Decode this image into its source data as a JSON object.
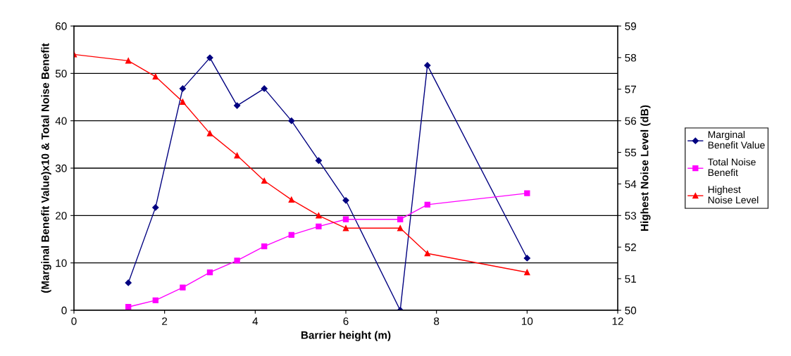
{
  "chart_data": {
    "type": "line",
    "xlabel": "Barrier height (m)",
    "ylabel": "(Marginal Benefit Value)x10 & Total Noise Benefit",
    "y2label": "Highest Noise Level (dB)",
    "xlim": [
      0,
      12
    ],
    "xticks": [
      0,
      2,
      4,
      6,
      8,
      10,
      12
    ],
    "ylim": [
      0,
      60
    ],
    "yticks": [
      0,
      10,
      20,
      30,
      40,
      50,
      60
    ],
    "y2lim": [
      50,
      59
    ],
    "y2ticks": [
      50,
      51,
      52,
      53,
      54,
      55,
      56,
      57,
      58,
      59
    ],
    "grid": "y",
    "legend": "right",
    "series": [
      {
        "name": "Marginal Benefit Value",
        "color": "#000080",
        "marker": "diamond",
        "x": [
          1.2,
          1.8,
          2.4,
          3.0,
          3.6,
          4.2,
          4.8,
          5.4,
          6.0,
          7.2,
          7.8,
          10
        ],
        "values": [
          5.8,
          21.7,
          46.8,
          53.3,
          43.2,
          46.8,
          40.0,
          31.6,
          23.2,
          0,
          51.7,
          11.0
        ]
      },
      {
        "name": "Total Noise Benefit",
        "color": "#ff00ff",
        "marker": "square",
        "x": [
          1.2,
          1.8,
          2.4,
          3.0,
          3.6,
          4.2,
          4.8,
          5.4,
          6.0,
          7.2,
          7.8,
          10
        ],
        "values": [
          0.7,
          2.1,
          4.8,
          8.0,
          10.5,
          13.5,
          15.9,
          17.7,
          19.2,
          19.2,
          22.3,
          24.7
        ]
      },
      {
        "name": "Highest Noise Level",
        "color": "#ff0000",
        "marker": "triangle",
        "axis": "y2",
        "x": [
          0,
          1.2,
          1.8,
          2.4,
          3.0,
          3.6,
          4.2,
          4.8,
          5.4,
          6.0,
          7.2,
          7.8,
          10
        ],
        "values": [
          58.1,
          57.9,
          57.4,
          56.6,
          55.6,
          54.9,
          54.1,
          53.5,
          53.0,
          52.6,
          52.6,
          51.8,
          51.2
        ]
      }
    ]
  }
}
